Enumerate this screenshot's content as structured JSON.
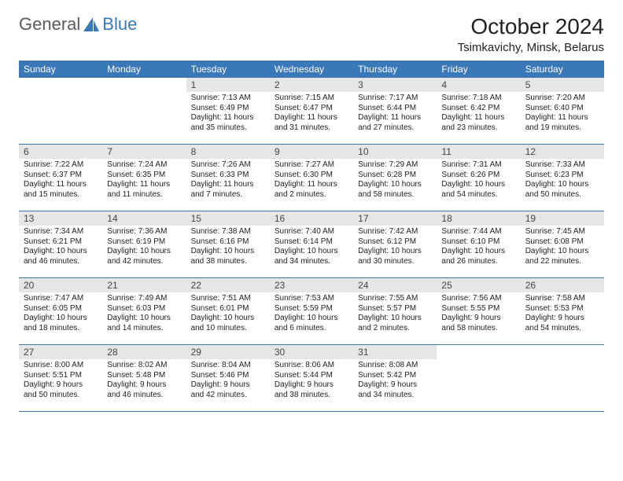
{
  "logo": {
    "text1": "General",
    "text2": "Blue"
  },
  "title": "October 2024",
  "location": "Tsimkavichy, Minsk, Belarus",
  "colors": {
    "header_bg": "#3a78b8",
    "header_fg": "#ffffff",
    "daynum_bg": "#e6e6e6",
    "week_border": "#3a78b8",
    "logo_gray": "#5a5a5a",
    "logo_blue": "#3a78b8"
  },
  "dow": [
    "Sunday",
    "Monday",
    "Tuesday",
    "Wednesday",
    "Thursday",
    "Friday",
    "Saturday"
  ],
  "weeks": [
    [
      {
        "n": "",
        "sr": "",
        "ss": "",
        "dl": ""
      },
      {
        "n": "",
        "sr": "",
        "ss": "",
        "dl": ""
      },
      {
        "n": "1",
        "sr": "Sunrise: 7:13 AM",
        "ss": "Sunset: 6:49 PM",
        "dl": "Daylight: 11 hours and 35 minutes."
      },
      {
        "n": "2",
        "sr": "Sunrise: 7:15 AM",
        "ss": "Sunset: 6:47 PM",
        "dl": "Daylight: 11 hours and 31 minutes."
      },
      {
        "n": "3",
        "sr": "Sunrise: 7:17 AM",
        "ss": "Sunset: 6:44 PM",
        "dl": "Daylight: 11 hours and 27 minutes."
      },
      {
        "n": "4",
        "sr": "Sunrise: 7:18 AM",
        "ss": "Sunset: 6:42 PM",
        "dl": "Daylight: 11 hours and 23 minutes."
      },
      {
        "n": "5",
        "sr": "Sunrise: 7:20 AM",
        "ss": "Sunset: 6:40 PM",
        "dl": "Daylight: 11 hours and 19 minutes."
      }
    ],
    [
      {
        "n": "6",
        "sr": "Sunrise: 7:22 AM",
        "ss": "Sunset: 6:37 PM",
        "dl": "Daylight: 11 hours and 15 minutes."
      },
      {
        "n": "7",
        "sr": "Sunrise: 7:24 AM",
        "ss": "Sunset: 6:35 PM",
        "dl": "Daylight: 11 hours and 11 minutes."
      },
      {
        "n": "8",
        "sr": "Sunrise: 7:26 AM",
        "ss": "Sunset: 6:33 PM",
        "dl": "Daylight: 11 hours and 7 minutes."
      },
      {
        "n": "9",
        "sr": "Sunrise: 7:27 AM",
        "ss": "Sunset: 6:30 PM",
        "dl": "Daylight: 11 hours and 2 minutes."
      },
      {
        "n": "10",
        "sr": "Sunrise: 7:29 AM",
        "ss": "Sunset: 6:28 PM",
        "dl": "Daylight: 10 hours and 58 minutes."
      },
      {
        "n": "11",
        "sr": "Sunrise: 7:31 AM",
        "ss": "Sunset: 6:26 PM",
        "dl": "Daylight: 10 hours and 54 minutes."
      },
      {
        "n": "12",
        "sr": "Sunrise: 7:33 AM",
        "ss": "Sunset: 6:23 PM",
        "dl": "Daylight: 10 hours and 50 minutes."
      }
    ],
    [
      {
        "n": "13",
        "sr": "Sunrise: 7:34 AM",
        "ss": "Sunset: 6:21 PM",
        "dl": "Daylight: 10 hours and 46 minutes."
      },
      {
        "n": "14",
        "sr": "Sunrise: 7:36 AM",
        "ss": "Sunset: 6:19 PM",
        "dl": "Daylight: 10 hours and 42 minutes."
      },
      {
        "n": "15",
        "sr": "Sunrise: 7:38 AM",
        "ss": "Sunset: 6:16 PM",
        "dl": "Daylight: 10 hours and 38 minutes."
      },
      {
        "n": "16",
        "sr": "Sunrise: 7:40 AM",
        "ss": "Sunset: 6:14 PM",
        "dl": "Daylight: 10 hours and 34 minutes."
      },
      {
        "n": "17",
        "sr": "Sunrise: 7:42 AM",
        "ss": "Sunset: 6:12 PM",
        "dl": "Daylight: 10 hours and 30 minutes."
      },
      {
        "n": "18",
        "sr": "Sunrise: 7:44 AM",
        "ss": "Sunset: 6:10 PM",
        "dl": "Daylight: 10 hours and 26 minutes."
      },
      {
        "n": "19",
        "sr": "Sunrise: 7:45 AM",
        "ss": "Sunset: 6:08 PM",
        "dl": "Daylight: 10 hours and 22 minutes."
      }
    ],
    [
      {
        "n": "20",
        "sr": "Sunrise: 7:47 AM",
        "ss": "Sunset: 6:05 PM",
        "dl": "Daylight: 10 hours and 18 minutes."
      },
      {
        "n": "21",
        "sr": "Sunrise: 7:49 AM",
        "ss": "Sunset: 6:03 PM",
        "dl": "Daylight: 10 hours and 14 minutes."
      },
      {
        "n": "22",
        "sr": "Sunrise: 7:51 AM",
        "ss": "Sunset: 6:01 PM",
        "dl": "Daylight: 10 hours and 10 minutes."
      },
      {
        "n": "23",
        "sr": "Sunrise: 7:53 AM",
        "ss": "Sunset: 5:59 PM",
        "dl": "Daylight: 10 hours and 6 minutes."
      },
      {
        "n": "24",
        "sr": "Sunrise: 7:55 AM",
        "ss": "Sunset: 5:57 PM",
        "dl": "Daylight: 10 hours and 2 minutes."
      },
      {
        "n": "25",
        "sr": "Sunrise: 7:56 AM",
        "ss": "Sunset: 5:55 PM",
        "dl": "Daylight: 9 hours and 58 minutes."
      },
      {
        "n": "26",
        "sr": "Sunrise: 7:58 AM",
        "ss": "Sunset: 5:53 PM",
        "dl": "Daylight: 9 hours and 54 minutes."
      }
    ],
    [
      {
        "n": "27",
        "sr": "Sunrise: 8:00 AM",
        "ss": "Sunset: 5:51 PM",
        "dl": "Daylight: 9 hours and 50 minutes."
      },
      {
        "n": "28",
        "sr": "Sunrise: 8:02 AM",
        "ss": "Sunset: 5:48 PM",
        "dl": "Daylight: 9 hours and 46 minutes."
      },
      {
        "n": "29",
        "sr": "Sunrise: 8:04 AM",
        "ss": "Sunset: 5:46 PM",
        "dl": "Daylight: 9 hours and 42 minutes."
      },
      {
        "n": "30",
        "sr": "Sunrise: 8:06 AM",
        "ss": "Sunset: 5:44 PM",
        "dl": "Daylight: 9 hours and 38 minutes."
      },
      {
        "n": "31",
        "sr": "Sunrise: 8:08 AM",
        "ss": "Sunset: 5:42 PM",
        "dl": "Daylight: 9 hours and 34 minutes."
      },
      {
        "n": "",
        "sr": "",
        "ss": "",
        "dl": ""
      },
      {
        "n": "",
        "sr": "",
        "ss": "",
        "dl": ""
      }
    ]
  ]
}
